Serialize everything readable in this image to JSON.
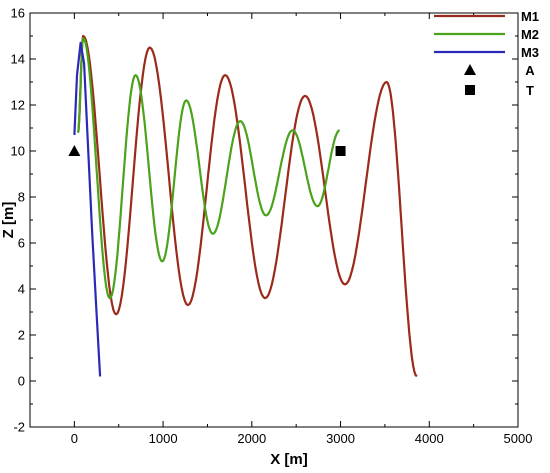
{
  "chart_data": {
    "type": "line",
    "xlabel": "X [m]",
    "ylabel": "Z [m]",
    "xlim": [
      -500,
      5000
    ],
    "ylim": [
      -2,
      16
    ],
    "xticks": [
      0,
      1000,
      2000,
      3000,
      4000,
      5000
    ],
    "yticks": [
      -2,
      0,
      2,
      4,
      6,
      8,
      10,
      12,
      14,
      16
    ],
    "grid": false,
    "legend_position": "top-right",
    "series": [
      {
        "name": "M1",
        "color": "#9b2a1a",
        "peaks": [
          [
            100,
            15.0
          ],
          [
            850,
            14.5
          ],
          [
            1700,
            13.3
          ],
          [
            2600,
            12.4
          ],
          [
            3520,
            13.0
          ]
        ],
        "troughs": [
          [
            470,
            2.9
          ],
          [
            1280,
            3.3
          ],
          [
            2150,
            3.6
          ],
          [
            3050,
            4.2
          ]
        ],
        "start": [
          40,
          10.8
        ],
        "end": [
          3860,
          0.2
        ]
      },
      {
        "name": "M2",
        "color": "#4aa31a",
        "peaks": [
          [
            100,
            14.9
          ],
          [
            690,
            13.3
          ],
          [
            1260,
            12.2
          ],
          [
            1870,
            11.3
          ],
          [
            2460,
            10.9
          ]
        ],
        "troughs": [
          [
            400,
            3.6
          ],
          [
            990,
            5.2
          ],
          [
            1560,
            6.4
          ],
          [
            2160,
            7.2
          ],
          [
            2740,
            7.6
          ]
        ],
        "start": [
          40,
          10.8
        ],
        "end": [
          2990,
          10.9
        ]
      },
      {
        "name": "M3",
        "color": "#2a2ab8",
        "x": [
          0,
          30,
          70,
          110,
          150,
          200,
          250,
          290
        ],
        "y": [
          10.7,
          13.3,
          14.7,
          13.8,
          10.5,
          6.5,
          3.0,
          0.2
        ]
      }
    ],
    "markers": [
      {
        "name": "A",
        "symbol": "triangle",
        "x": 0,
        "y": 10
      },
      {
        "name": "T",
        "symbol": "square",
        "x": 3000,
        "y": 10
      }
    ]
  }
}
